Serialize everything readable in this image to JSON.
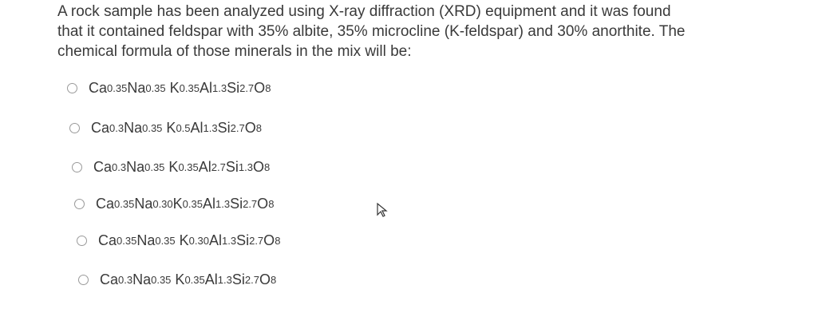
{
  "question": {
    "lines": [
      "A rock sample has been analyzed using X-ray diffraction (XRD) equipment and it was found",
      "that it contained feldspar with 35% albite, 35% microcline (K-feldspar) and 30% anorthite. The",
      "chemical formula of those minerals in the mix will be:"
    ]
  },
  "options": [
    [
      "Ca",
      "0.35",
      "Na",
      "0.35",
      " K",
      "0.35",
      "Al",
      "1.3",
      "Si",
      "2.7",
      "O",
      "8"
    ],
    [
      "Ca",
      "0.3",
      "Na",
      "0.35",
      " K",
      "0.5",
      "Al",
      "1.3",
      "Si",
      "2.7",
      "O",
      "8"
    ],
    [
      "Ca",
      "0.3",
      "Na",
      "0.35",
      " K",
      "0.35",
      "Al",
      "2.7",
      "Si",
      "1.3",
      "O",
      "8"
    ],
    [
      "Ca",
      "0.35",
      "Na",
      "0.30",
      "K",
      "0.35",
      "Al",
      "1.3",
      "Si",
      "2.7",
      "O",
      "8"
    ],
    [
      "Ca",
      "0.35",
      "Na",
      "0.35",
      " K",
      "0.30",
      "Al",
      "1.3",
      "Si",
      "2.7",
      "O",
      "8"
    ],
    [
      "Ca",
      "0.3",
      "Na",
      "0.35",
      " K",
      "0.35",
      "Al",
      "1.3",
      "Si",
      "2.7",
      "O",
      "8"
    ]
  ]
}
